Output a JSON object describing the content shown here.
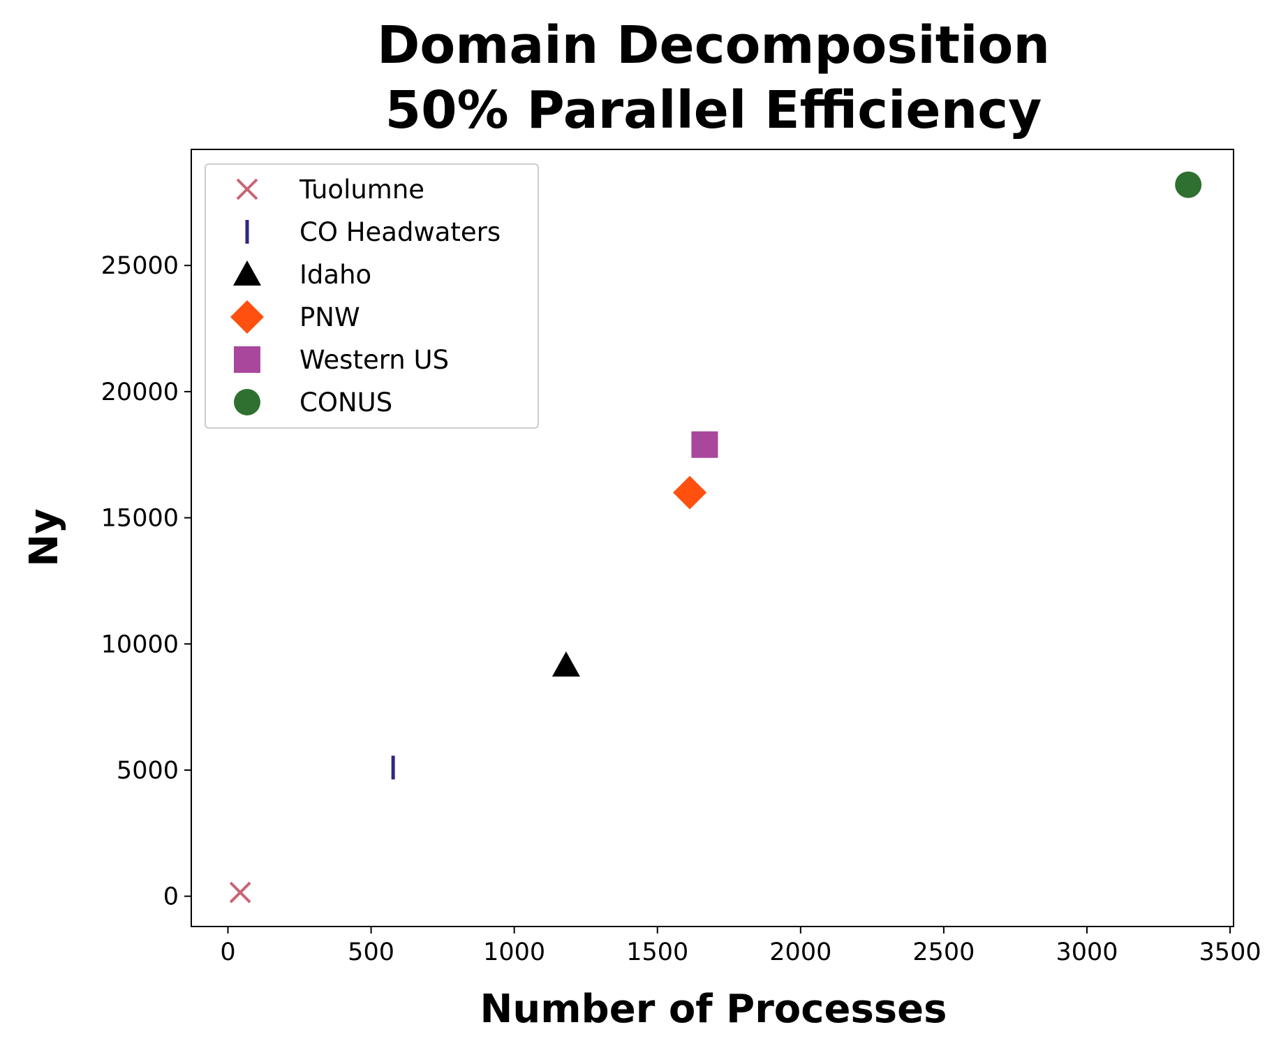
{
  "chart_data": {
    "type": "scatter",
    "title_lines": [
      "Domain Decomposition",
      "50% Parallel Efficiency"
    ],
    "xlabel": "Number of Processes",
    "ylabel": "Ny",
    "xlim": [
      -128,
      3512
    ],
    "ylim": [
      -1200,
      29600
    ],
    "xticks": [
      0,
      500,
      1000,
      1500,
      2000,
      2500,
      3000,
      3500
    ],
    "xtick_labels": [
      "0",
      "500",
      "1000",
      "1500",
      "2000",
      "2500",
      "3000",
      "3500"
    ],
    "yticks": [
      0,
      5000,
      10000,
      15000,
      20000,
      25000
    ],
    "ytick_labels": [
      "0",
      "5000",
      "10000",
      "15000",
      "20000",
      "25000"
    ],
    "grid": false,
    "legend_position": "top-left",
    "series": [
      {
        "name": "Tuolumne",
        "marker": "x",
        "color": "#c96475",
        "x": [
          43
        ],
        "y": [
          150
        ]
      },
      {
        "name": "CO Headwaters",
        "marker": "vline",
        "color": "#2e2785",
        "x": [
          577
        ],
        "y": [
          5100
        ]
      },
      {
        "name": "Idaho",
        "marker": "triangle",
        "color": "#000000",
        "x": [
          1181
        ],
        "y": [
          9150
        ]
      },
      {
        "name": "PNW",
        "marker": "diamond",
        "color": "#ff5010",
        "x": [
          1613
        ],
        "y": [
          16000
        ]
      },
      {
        "name": "Western US",
        "marker": "square",
        "color": "#a8479c",
        "x": [
          1665
        ],
        "y": [
          17900
        ]
      },
      {
        "name": "CONUS",
        "marker": "circle",
        "color": "#2f7030",
        "x": [
          3354
        ],
        "y": [
          28200
        ]
      }
    ]
  }
}
